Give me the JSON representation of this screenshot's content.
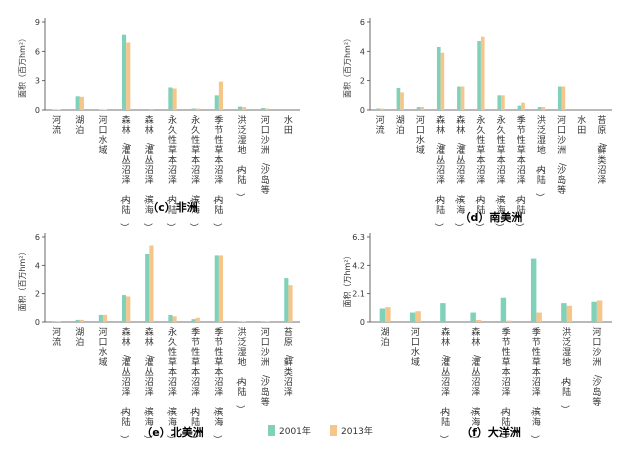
{
  "legend": {
    "series_names": [
      "2001年",
      "2013年"
    ],
    "colors": [
      "#7fd1b9",
      "#f5c58a"
    ]
  },
  "chart_data": [
    {
      "type": "bar",
      "title": "（c）非洲",
      "ylabel": "面积（百万hm²）",
      "ylim": [
        0,
        9
      ],
      "yticks": [
        0,
        3,
        6,
        9
      ],
      "categories": [
        "河流",
        "湖泊",
        "河口水域",
        "森林/灌丛沼泽（内陆）",
        "森林/灌丛沼泽（滨海）",
        "永久性草本沼泽（内陆）",
        "永久性草本沼泽（滨海）",
        "季节性草本沼泽（内陆）",
        "洪泛湿地（内陆）",
        "河口沙洲/沙岛等",
        "水田"
      ],
      "series": [
        {
          "values": [
            0.05,
            1.4,
            0.05,
            7.7,
            0.1,
            2.3,
            0.15,
            1.5,
            0.35,
            0.2,
            0.0
          ]
        },
        {
          "values": [
            0.05,
            1.35,
            0.05,
            6.9,
            0.1,
            2.2,
            0.15,
            2.9,
            0.3,
            0.15,
            0.0
          ]
        }
      ]
    },
    {
      "type": "bar",
      "title": "（d）南美洲",
      "ylabel": "面积（百万hm²）",
      "ylim": [
        0,
        6
      ],
      "yticks": [
        0,
        2,
        4,
        6
      ],
      "categories": [
        "河流",
        "湖泊",
        "河口水域",
        "森林/灌丛沼泽（内陆）",
        "森林/灌丛沼泽（滨海）",
        "永久性草本沼泽（内陆）",
        "永久性草本沼泽（滨海）",
        "季节性草本沼泽（内陆）",
        "洪泛湿地（内陆）",
        "河口沙洲/沙岛等",
        "水田",
        "苔原/藓类沼泽"
      ],
      "series": [
        {
          "values": [
            0.1,
            1.5,
            0.2,
            4.3,
            1.6,
            4.7,
            1.0,
            0.3,
            0.2,
            1.6,
            0.0,
            0.0
          ]
        },
        {
          "values": [
            0.1,
            1.2,
            0.2,
            3.9,
            1.6,
            5.0,
            1.0,
            0.5,
            0.2,
            1.6,
            0.0,
            0.0
          ]
        }
      ]
    },
    {
      "type": "bar",
      "title": "（e）北美洲",
      "ylabel": "面积（百万hm²）",
      "ylim": [
        0,
        6
      ],
      "yticks": [
        0,
        2,
        4,
        6
      ],
      "categories": [
        "河流",
        "湖泊",
        "河口水域",
        "森林/灌丛沼泽（内陆）",
        "森林/灌丛沼泽（滨海）",
        "永久性草本沼泽（滨海）",
        "季节性草本沼泽（内陆）",
        "季节性草本沼泽（滨海）",
        "洪泛湿地（内陆）",
        "河口沙洲/沙岛等",
        "苔原/藓类沼泽"
      ],
      "series": [
        {
          "values": [
            0.05,
            0.15,
            0.5,
            1.9,
            4.8,
            0.5,
            0.2,
            4.7,
            0.05,
            0.05,
            3.1
          ]
        },
        {
          "values": [
            0.05,
            0.15,
            0.5,
            1.8,
            5.4,
            0.4,
            0.3,
            4.7,
            0.05,
            0.05,
            2.6
          ]
        }
      ]
    },
    {
      "type": "bar",
      "title": "（f）大洋洲",
      "ylabel": "面积（万hm²）",
      "ylim": [
        0,
        6.3
      ],
      "yticks": [
        0,
        2.1,
        4.2,
        6.3
      ],
      "categories": [
        "湖泊",
        "河口水域",
        "森林/灌丛沼泽（内陆）",
        "森林/灌丛沼泽（滨海）",
        "季节性草本沼泽（内陆）",
        "季节性草本沼泽（滨海）",
        "洪泛湿地（内陆）",
        "河口沙洲/沙岛等"
      ],
      "series": [
        {
          "values": [
            1.0,
            0.7,
            1.4,
            0.7,
            1.8,
            4.7,
            1.4,
            1.5
          ]
        },
        {
          "values": [
            1.1,
            0.8,
            0.0,
            0.15,
            0.1,
            0.7,
            1.2,
            1.6
          ]
        }
      ]
    }
  ]
}
